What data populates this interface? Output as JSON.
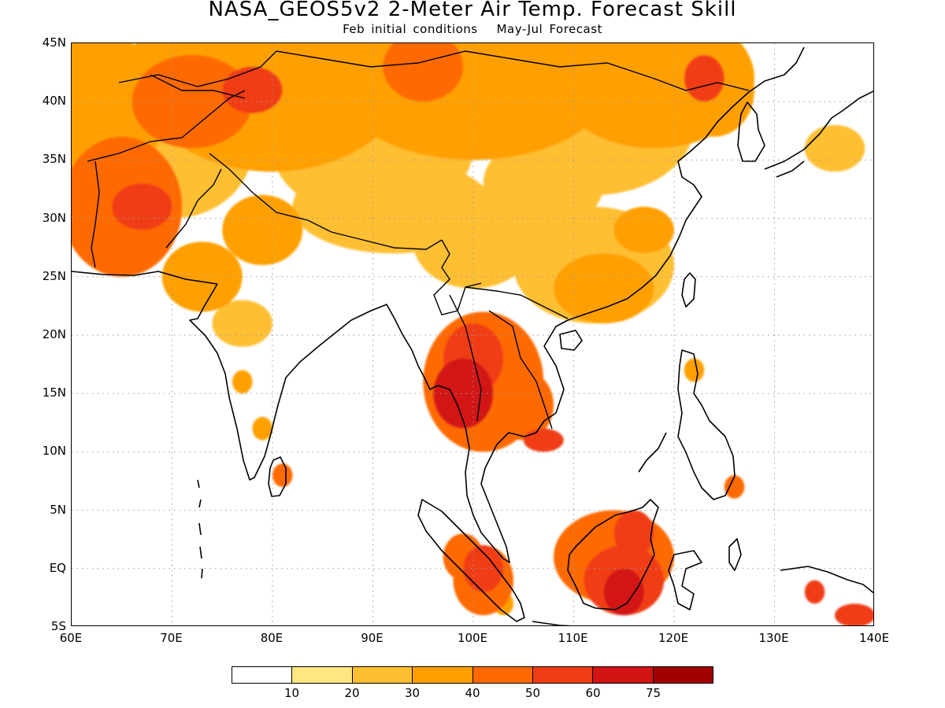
{
  "title": "NASA_GEOS5v2 2-Meter Air Temp. Forecast Skill",
  "subtitle": {
    "left": "Feb initial conditions",
    "right": "May-Jul Forecast"
  },
  "map": {
    "lon_range": [
      60,
      140
    ],
    "lat_range": [
      -5,
      45
    ],
    "lat_labels": [
      "45N",
      "40N",
      "35N",
      "30N",
      "25N",
      "20N",
      "15N",
      "10N",
      "5N",
      "EQ",
      "5S"
    ],
    "lon_labels": [
      "60E",
      "70E",
      "80E",
      "90E",
      "100E",
      "110E",
      "120E",
      "130E",
      "140E"
    ],
    "gridlines": "dotted",
    "skill_regions": [
      {
        "name": "Central Asia / Mongolia belt",
        "level": 3
      },
      {
        "name": "Afghanistan / Pakistan",
        "level": 4
      },
      {
        "name": "Tibetan Plateau",
        "level": 2
      },
      {
        "name": "Southern China",
        "level": 2
      },
      {
        "name": "Indochina",
        "level": 5
      },
      {
        "name": "Borneo",
        "level": 6
      },
      {
        "name": "Sumatra",
        "level": 5
      }
    ]
  },
  "colorbar": {
    "colors": [
      "#ffffff",
      "#ffe680",
      "#ffbf33",
      "#ffa000",
      "#ff6a00",
      "#f03c14",
      "#d21414",
      "#a00000"
    ],
    "labels": [
      "10",
      "20",
      "30",
      "40",
      "50",
      "60",
      "75"
    ]
  }
}
